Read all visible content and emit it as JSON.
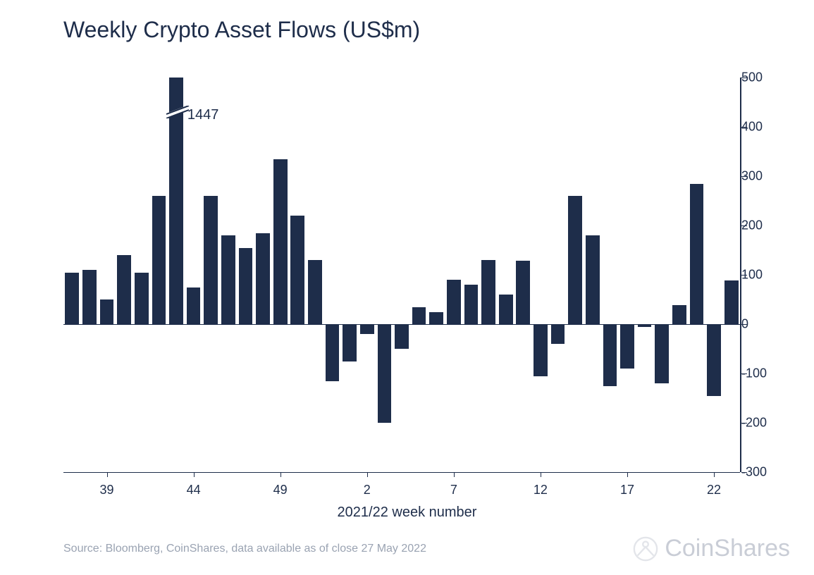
{
  "chart": {
    "type": "bar",
    "title": "Weekly Crypto Asset Flows (US$m)",
    "title_fontsize": 32,
    "title_color": "#1e2d4a",
    "x_axis_title": "2021/22 week number",
    "source_text": "Source: Bloomberg, CoinShares, data available as of close 27 May 2022",
    "watermark_text": "CoinShares",
    "background_color": "#ffffff",
    "bar_color": "#1e2d4a",
    "axis_color": "#1e2d4a",
    "text_color": "#1e2d4a",
    "muted_color": "#9aa3b2",
    "watermark_color": "#c9cdd6",
    "ylim": [
      -300,
      500
    ],
    "yticks": [
      -300,
      -200,
      -100,
      0,
      100,
      200,
      300,
      400,
      500
    ],
    "x_labels_shown": [
      "39",
      "44",
      "49",
      "2",
      "7",
      "12",
      "17",
      "22"
    ],
    "bar_width_ratio": 0.8,
    "annotation": {
      "text": "1447",
      "bar_index": 6
    },
    "data": [
      {
        "label": "37",
        "value": 105
      },
      {
        "label": "38",
        "value": 110
      },
      {
        "label": "39",
        "value": 50
      },
      {
        "label": "40",
        "value": 140
      },
      {
        "label": "41",
        "value": 105
      },
      {
        "label": "42",
        "value": 260
      },
      {
        "label": "43",
        "value": 500,
        "truncated": true,
        "actual": 1447
      },
      {
        "label": "44",
        "value": 75
      },
      {
        "label": "45",
        "value": 260
      },
      {
        "label": "46",
        "value": 180
      },
      {
        "label": "47",
        "value": 155
      },
      {
        "label": "48",
        "value": 185
      },
      {
        "label": "49",
        "value": 335
      },
      {
        "label": "50",
        "value": 220
      },
      {
        "label": "51",
        "value": 130
      },
      {
        "label": "52",
        "value": -115
      },
      {
        "label": "1",
        "value": -75
      },
      {
        "label": "2",
        "value": -20
      },
      {
        "label": "3",
        "value": -200
      },
      {
        "label": "4",
        "value": -50
      },
      {
        "label": "5",
        "value": 35
      },
      {
        "label": "6",
        "value": 25
      },
      {
        "label": "7",
        "value": 90
      },
      {
        "label": "8",
        "value": 80
      },
      {
        "label": "9",
        "value": 130
      },
      {
        "label": "10",
        "value": 60
      },
      {
        "label": "11",
        "value": 128
      },
      {
        "label": "12",
        "value": -105
      },
      {
        "label": "13",
        "value": -40
      },
      {
        "label": "14",
        "value": 260
      },
      {
        "label": "15",
        "value": 180
      },
      {
        "label": "16",
        "value": -125
      },
      {
        "label": "17",
        "value": -90
      },
      {
        "label": "18",
        "value": -5
      },
      {
        "label": "19",
        "value": -120
      },
      {
        "label": "20",
        "value": 38
      },
      {
        "label": "21",
        "value": 285
      },
      {
        "label": "22",
        "value": -145
      },
      {
        "label": "23",
        "value": 88
      }
    ]
  }
}
